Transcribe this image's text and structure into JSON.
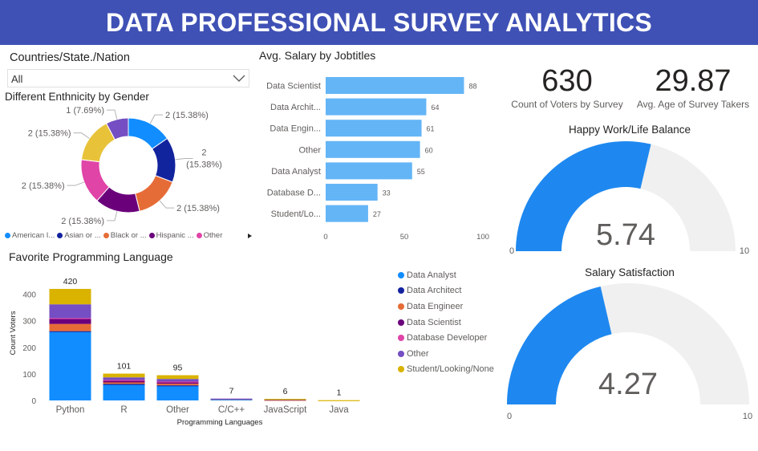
{
  "header": {
    "title": "DATA PROFESSIONAL SURVEY ANALYTICS"
  },
  "slicer": {
    "title": "Countries/State./Nation",
    "value": "All"
  },
  "donut": {
    "title": "Different Enthnicity by Gender",
    "legend": [
      {
        "label": "American I...",
        "color": "#118dff"
      },
      {
        "label": "Asian or ...",
        "color": "#12239e"
      },
      {
        "label": "Black or ...",
        "color": "#e66c37"
      },
      {
        "label": "Hispanic ...",
        "color": "#6b007b"
      },
      {
        "label": "Other",
        "color": "#e044a7"
      }
    ]
  },
  "bar_title": "Avg. Salary by Jobtitles",
  "kpis": [
    {
      "value": "630",
      "label": "Count of Voters by Survey"
    },
    {
      "value": "29.87",
      "label": "Avg. Age of Survey Takers"
    }
  ],
  "gauges": [
    {
      "title": "Happy Work/Life Balance",
      "value_label": "5.74",
      "min_label": "0",
      "max_label": "10"
    },
    {
      "title": "Salary Satisfaction",
      "value_label": "4.27",
      "min_label": "0",
      "max_label": "10"
    }
  ],
  "col_title": "Favorite Programming Language",
  "col_legend": [
    {
      "label": "Data Analyst",
      "color": "#118dff"
    },
    {
      "label": "Data Architect",
      "color": "#12239e"
    },
    {
      "label": "Data Engineer",
      "color": "#e66c37"
    },
    {
      "label": "Data Scientist",
      "color": "#6b007b"
    },
    {
      "label": "Database Developer",
      "color": "#e044a7"
    },
    {
      "label": "Other",
      "color": "#744ec2"
    },
    {
      "label": "Student/Looking/None",
      "color": "#d9b300"
    }
  ],
  "chart_data": [
    {
      "type": "pie",
      "title": "Different Enthnicity by Gender",
      "slices": [
        {
          "value": 2,
          "label": "2 (15.38%)",
          "color": "#118dff"
        },
        {
          "value": 2,
          "label": "2 (15.38%)",
          "color": "#12239e"
        },
        {
          "value": 2,
          "label": "2 (15.38%)",
          "color": "#e66c37"
        },
        {
          "value": 2,
          "label": "2 (15.38%)",
          "color": "#6b007b"
        },
        {
          "value": 2,
          "label": "2 (15.38%)",
          "color": "#e044a7"
        },
        {
          "value": 2,
          "label": "2 (15.38%)",
          "color": "#e8c33a"
        },
        {
          "value": 1,
          "label": "1 (7.69%)",
          "color": "#744ec2"
        }
      ]
    },
    {
      "type": "bar",
      "title": "Avg. Salary by Jobtitles",
      "orientation": "horizontal",
      "categories": [
        "Data Scientist",
        "Data Archit...",
        "Data Engin...",
        "Other",
        "Data Analyst",
        "Database D...",
        "Student/Lo..."
      ],
      "values": [
        88,
        64,
        61,
        60,
        55,
        33,
        27
      ],
      "xlim": [
        0,
        100
      ],
      "xticks": [
        0,
        50,
        100
      ],
      "color": "#64b5f6"
    },
    {
      "type": "bar",
      "stacked": true,
      "title": "Favorite Programming Language",
      "xlabel": "Programming Languages",
      "ylabel": "Count Voters",
      "categories": [
        "Python",
        "R",
        "Other",
        "C/C++",
        "JavaScript",
        "Java"
      ],
      "totals": [
        420,
        101,
        95,
        7,
        6,
        1
      ],
      "ylim": [
        0,
        420
      ],
      "yticks": [
        0,
        100,
        200,
        300,
        400
      ],
      "series": [
        {
          "name": "Data Analyst",
          "color": "#118dff",
          "values": [
            258,
            60,
            55,
            5,
            0,
            0
          ]
        },
        {
          "name": "Data Architect",
          "color": "#12239e",
          "values": [
            3,
            2,
            2,
            0,
            0,
            0
          ]
        },
        {
          "name": "Data Engineer",
          "color": "#e66c37",
          "values": [
            27,
            6,
            6,
            1,
            2,
            0
          ]
        },
        {
          "name": "Data Scientist",
          "color": "#6b007b",
          "values": [
            20,
            7,
            6,
            0,
            0,
            0
          ]
        },
        {
          "name": "Database Developer",
          "color": "#e044a7",
          "values": [
            2,
            2,
            2,
            0,
            0,
            0
          ]
        },
        {
          "name": "Other",
          "color": "#744ec2",
          "values": [
            52,
            10,
            10,
            1,
            2,
            0
          ]
        },
        {
          "name": "Student/Looking/None",
          "color": "#d9b300",
          "values": [
            58,
            14,
            14,
            0,
            2,
            1
          ]
        }
      ]
    },
    {
      "type": "gauge",
      "title": "Happy Work/Life Balance",
      "value": 5.74,
      "min": 0,
      "max": 10
    },
    {
      "type": "gauge",
      "title": "Salary Satisfaction",
      "value": 4.27,
      "min": 0,
      "max": 10
    }
  ]
}
